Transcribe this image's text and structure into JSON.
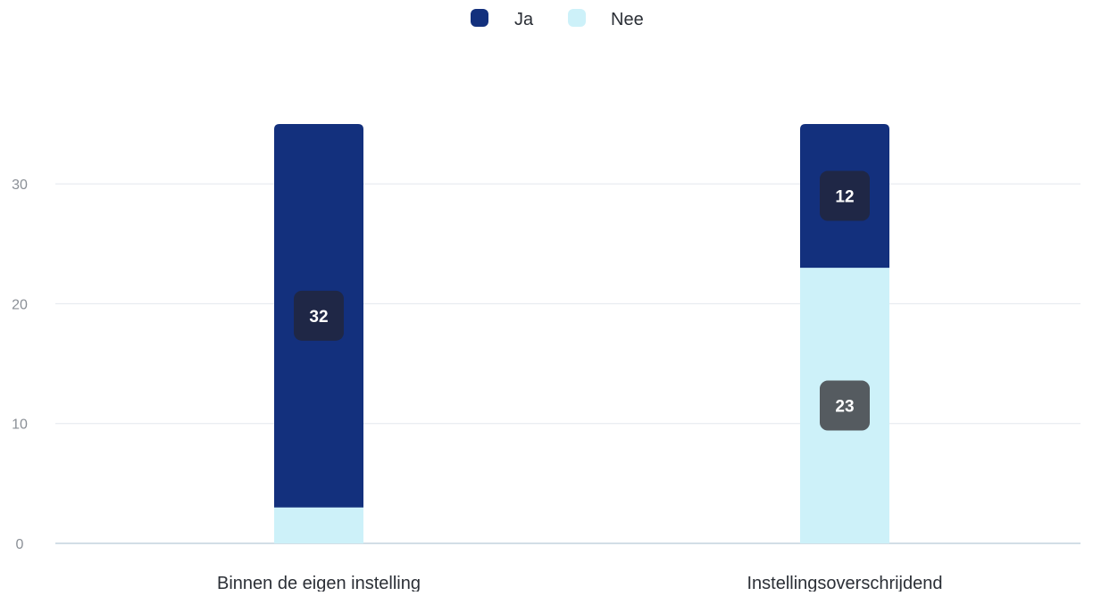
{
  "chart_data": {
    "type": "bar",
    "stacked": true,
    "categories": [
      "Binnen de eigen instelling",
      "Instellingsoverschrijdend"
    ],
    "series": [
      {
        "name": "Ja",
        "values": [
          32,
          12
        ],
        "color": "#13307d"
      },
      {
        "name": "Nee",
        "values": [
          3,
          23
        ],
        "color": "#cdf1f9"
      }
    ],
    "data_labels": [
      [
        "32",
        "12"
      ],
      [
        "",
        "23"
      ]
    ],
    "label_colors": {
      "Ja": "#1f2746",
      "Nee": "#555b60"
    },
    "yticks": [
      0,
      10,
      20,
      30
    ],
    "ylim": [
      0,
      35
    ],
    "grid": true,
    "legend_position": "top-center",
    "title": "",
    "xlabel": "",
    "ylabel": ""
  }
}
